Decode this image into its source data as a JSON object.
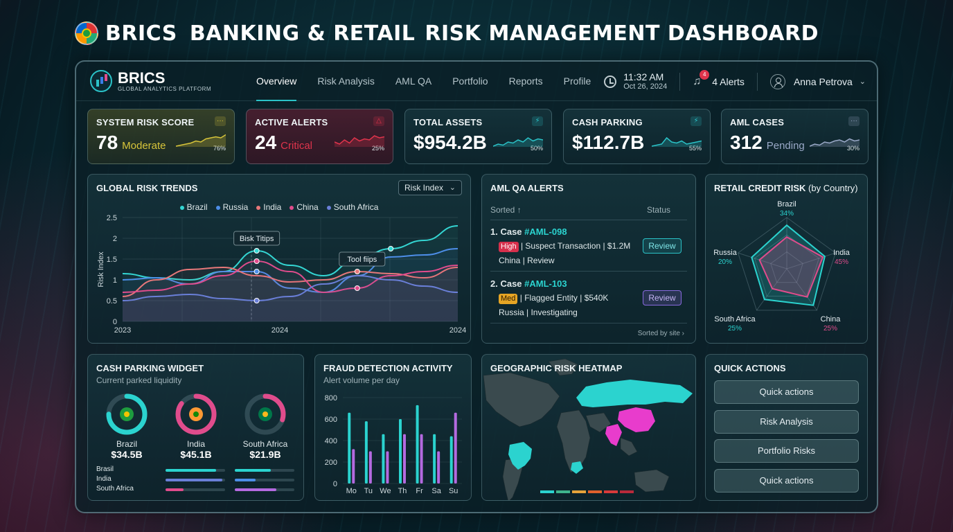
{
  "page_title_parts": [
    "BRICS",
    "BANKING & RETAIL",
    "RISK MANAGEMENT DASHBOARD"
  ],
  "brand": {
    "name": "BRICS",
    "subtitle": "GLOBAL ANALYTICS PLATFORM"
  },
  "nav": {
    "tabs": [
      "Overview",
      "Risk Analysis",
      "AML QA",
      "Portfolio",
      "Reports",
      "Profile"
    ],
    "active_tab": "Overview",
    "time": "11:32 AM",
    "date": "Oct 26, 2024",
    "alert_badge": "4",
    "alerts_label": "4 Alerts",
    "user_name": "Anna Petrova"
  },
  "kpis": [
    {
      "title": "SYSTEM RISK SCORE",
      "value": "78",
      "status": "Moderate",
      "pct": "76%",
      "accent": "#d8c53a",
      "badge": "···"
    },
    {
      "title": "ACTIVE ALERTS",
      "value": "24",
      "status": "Critical",
      "pct": "25%",
      "accent": "#e0344c",
      "badge": "△"
    },
    {
      "title": "TOTAL ASSETS",
      "value": "$954.2B",
      "status": "",
      "pct": "50%",
      "accent": "#2bc3c8",
      "badge": "⚡"
    },
    {
      "title": "CASH PARKING",
      "value": "$112.7B",
      "status": "",
      "pct": "55%",
      "accent": "#2bc3c8",
      "badge": "⚡"
    },
    {
      "title": "AML CASES",
      "value": "312",
      "status": "Pending",
      "pct": "30%",
      "accent": "#9aa9c8",
      "badge": "···"
    }
  ],
  "global_risk": {
    "title": "GLOBAL RISK TRENDS",
    "dropdown": "Risk Index",
    "tooltip1": "Bisk Titips",
    "tooltip2": "Tool fiips"
  },
  "chart_data": [
    {
      "type": "line",
      "title": "GLOBAL RISK TRENDS",
      "ylabel": "Risk Index",
      "xlabel": "",
      "x_ticks": [
        "2023",
        "2024",
        "2024"
      ],
      "y_ticks": [
        "0",
        "0.5",
        "1",
        "1.5",
        "2",
        "2.5"
      ],
      "ylim": [
        0,
        2.5
      ],
      "x": [
        0,
        1,
        2,
        3,
        4,
        5,
        6,
        7,
        8,
        9,
        10
      ],
      "series": [
        {
          "name": "Brazil",
          "color": "#34d6d3",
          "values": [
            1.15,
            1.05,
            1.0,
            1.2,
            1.7,
            1.35,
            1.1,
            1.5,
            1.75,
            1.95,
            2.3
          ]
        },
        {
          "name": "Russia",
          "color": "#4d8ee8",
          "values": [
            1.0,
            1.05,
            0.9,
            1.2,
            1.2,
            0.8,
            0.7,
            1.1,
            1.55,
            1.6,
            1.75
          ]
        },
        {
          "name": "India",
          "color": "#e7787a",
          "values": [
            0.6,
            1.0,
            1.25,
            1.3,
            1.1,
            0.95,
            1.0,
            1.2,
            1.15,
            1.05,
            1.3
          ]
        },
        {
          "name": "China",
          "color": "#e04c8c",
          "values": [
            0.7,
            0.75,
            0.9,
            1.1,
            1.45,
            1.2,
            0.7,
            0.8,
            1.1,
            1.2,
            1.35
          ]
        },
        {
          "name": "South Africa",
          "color": "#6a7fd8",
          "values": [
            0.5,
            0.6,
            0.65,
            0.55,
            0.5,
            0.6,
            0.9,
            1.1,
            1.0,
            0.85,
            0.7
          ]
        }
      ]
    },
    {
      "type": "radar",
      "title": "RETAIL CREDIT RISK (by Country)",
      "categories": [
        "Brazil",
        "India",
        "China",
        "South Africa",
        "Russia"
      ],
      "values": [
        34,
        45,
        25,
        25,
        20
      ]
    },
    {
      "type": "bar",
      "title": "FRAUD DETECTION ACTIVITY",
      "subtitle": "Alert volume per day",
      "categories": [
        "Mo",
        "Tu",
        "We",
        "Th",
        "Fr",
        "Sa",
        "Su"
      ],
      "y_ticks": [
        "0",
        "200",
        "400",
        "600",
        "800"
      ],
      "ylim": [
        0,
        800
      ],
      "series": [
        {
          "color": "#2bd3cf",
          "values": [
            660,
            580,
            460,
            600,
            730,
            460,
            440
          ]
        },
        {
          "color": "#b46ae0",
          "values": [
            320,
            300,
            300,
            460,
            460,
            300,
            660
          ]
        }
      ]
    }
  ],
  "aml": {
    "title": "AML QA ALERTS",
    "sorted_label": "Sorted ↑",
    "status_label": "Status",
    "items": [
      {
        "case": "1. Case ",
        "id": "#AML-098",
        "severity": "High",
        "line1": " | Suspect Transaction | $1.2M",
        "line2": "China | Review",
        "button": "Review"
      },
      {
        "case": "2. Case ",
        "id": "#AML-103",
        "severity": "Med",
        "line1": " | Flagged Entity | $540K",
        "line2": "Russia | Investigating",
        "button": "Review"
      }
    ],
    "footer": "Sorted by site ›"
  },
  "radar_labels": {
    "title": "RETAIL CREDIT RISK",
    "title_suffix": " (by Country)",
    "points": [
      {
        "name": "Brazil",
        "pct": "34%"
      },
      {
        "name": "India",
        "pct": "45%"
      },
      {
        "name": "China",
        "pct": "25%"
      },
      {
        "name": "South Africa",
        "pct": "25%"
      },
      {
        "name": "Russia",
        "pct": "20%"
      }
    ]
  },
  "cash_parking": {
    "title": "CASH PARKING WIDGET",
    "subtitle": "Current parked liquidity",
    "donuts": [
      {
        "name": "Brazil",
        "value": "$34.5B",
        "fraction": 0.75,
        "color": "#2bd3cf"
      },
      {
        "name": "India",
        "value": "$45.1B",
        "fraction": 0.85,
        "color": "#e04c8c"
      },
      {
        "name": "South Africa",
        "value": "$21.9B",
        "fraction": 0.3,
        "color": "#e04c8c"
      }
    ],
    "bars": [
      {
        "name": "Brasil",
        "segments": [
          0.85,
          0.6
        ],
        "colors": [
          "#2bd3cf",
          "#2bd3cf"
        ]
      },
      {
        "name": "India",
        "segments": [
          0.95,
          0.35
        ],
        "colors": [
          "#6a7fd8",
          "#4d8ee8"
        ]
      },
      {
        "name": "South Africa",
        "segments": [
          0.3,
          0.7
        ],
        "colors": [
          "#e04c8c",
          "#b46ae0"
        ]
      }
    ]
  },
  "fraud": {
    "title": "FRAUD DETECTION ACTIVITY",
    "subtitle": "Alert volume per day"
  },
  "heatmap": {
    "title": "GEOGRAPHIC RISK HEATMAP",
    "legend_colors": [
      "#2bd3cf",
      "#3fb48c",
      "#e6a33a",
      "#e0602c",
      "#d83a3a",
      "#b82a3a"
    ]
  },
  "quick_actions": {
    "title": "QUICK ACTIONS",
    "buttons": [
      "Quick actions",
      "Risk Analysis",
      "Portfolio Risks",
      "Quick actions"
    ]
  }
}
